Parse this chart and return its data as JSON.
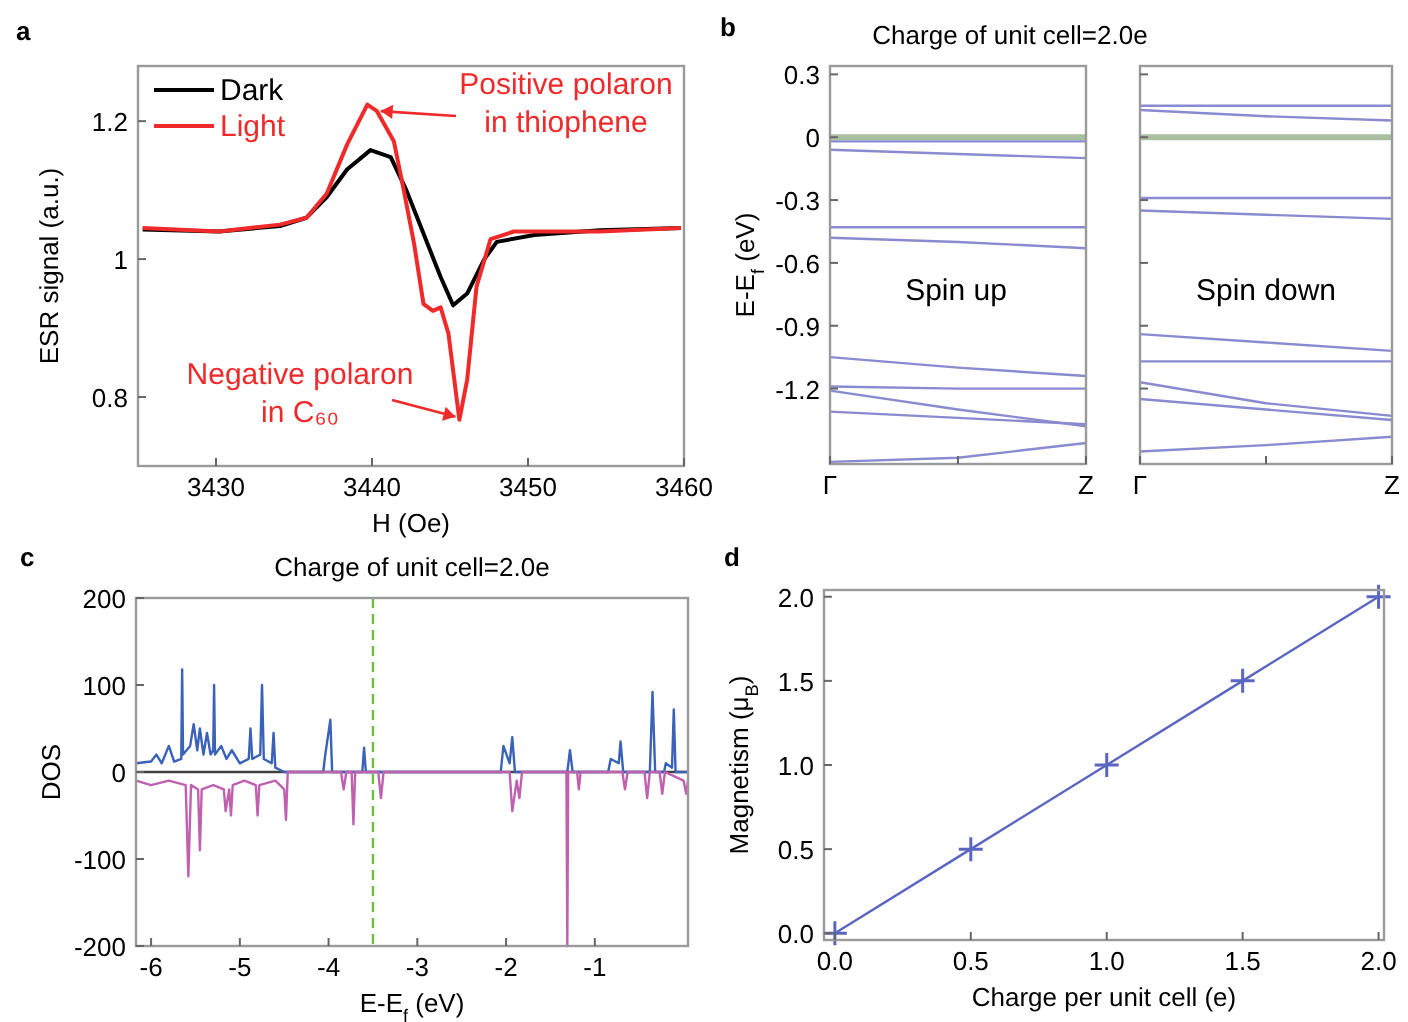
{
  "chart_data": [
    {
      "type": "line",
      "xlabel": "H (Oe)",
      "ylabel": "ESR signal (a.u.)",
      "xlim": [
        3425,
        3460
      ],
      "xticks": [
        3430,
        3440,
        3450,
        3460
      ],
      "ylim": [
        0.7,
        1.28
      ],
      "yticks": [
        0.8,
        1.0,
        1.2
      ],
      "legend": "top left",
      "grid": false,
      "annotations": [
        "a",
        {
          "text": "Positive polaron in thiophene",
          "x": 3440.3,
          "y": 1.215
        },
        {
          "text": "Negative polaron in C₆₀",
          "x": 3445.6,
          "y": 0.77
        }
      ],
      "series": [
        {
          "name": "Dark",
          "color": "#000000",
          "x": [
            3425.3,
            3430.2,
            3434.1,
            3435.8,
            3437.1,
            3438.4,
            3439.9,
            3441.2,
            3442.2,
            3443.3,
            3444.4,
            3445.2,
            3446.1,
            3447.2,
            3448.0,
            3450.4,
            3454.6,
            3459.8
          ],
          "values": [
            1.043,
            1.04,
            1.048,
            1.06,
            1.09,
            1.13,
            1.158,
            1.148,
            1.1,
            1.037,
            0.974,
            0.933,
            0.95,
            1.0,
            1.025,
            1.035,
            1.042,
            1.045
          ]
        },
        {
          "name": "Light",
          "color": "#f02a2a",
          "x": [
            3425.3,
            3430.2,
            3434.1,
            3435.8,
            3437.1,
            3438.4,
            3439.7,
            3440.3,
            3441.4,
            3442.0,
            3442.7,
            3443.3,
            3443.9,
            3444.4,
            3444.9,
            3445.6,
            3446.1,
            3446.7,
            3447.6,
            3449.1,
            3454.6,
            3459.8
          ],
          "values": [
            1.045,
            1.04,
            1.05,
            1.06,
            1.095,
            1.166,
            1.224,
            1.215,
            1.171,
            1.104,
            1.022,
            0.935,
            0.925,
            0.93,
            0.892,
            0.767,
            0.825,
            0.96,
            1.029,
            1.04,
            1.04,
            1.045
          ]
        }
      ]
    },
    {
      "type": "line",
      "title": "Charge of unit cell=2.0e",
      "ylabel": "E-E$_{f}$ (eV)",
      "categories": [
        "Γ",
        null,
        "Z"
      ],
      "ylim": [
        -1.56,
        0.34
      ],
      "yticks": [
        0.3,
        0,
        -0.3,
        -0.6,
        -0.9,
        -1.2
      ],
      "annotations": [
        "b",
        "Spin up"
      ],
      "ref_lines": [
        {
          "axis": "y",
          "value": 0,
          "color": "#a8c0a0"
        }
      ],
      "series": [
        {
          "color": "#8a8ad0",
          "values": [
            -0.02,
            -0.02,
            -0.02
          ]
        },
        {
          "color": "#8a8ad0",
          "values": [
            -0.06,
            -0.08,
            -0.1
          ]
        },
        {
          "color": "#8a8ad0",
          "values": [
            -0.43,
            -0.43,
            -0.43
          ]
        },
        {
          "color": "#8a8ad0",
          "values": [
            -0.48,
            -0.5,
            -0.53
          ]
        },
        {
          "color": "#8a8ad0",
          "values": [
            -1.05,
            -1.1,
            -1.14
          ]
        },
        {
          "color": "#8a8ad0",
          "values": [
            -1.19,
            -1.2,
            -1.2
          ]
        },
        {
          "color": "#8a8ad0",
          "values": [
            -1.21,
            -1.3,
            -1.38
          ]
        },
        {
          "color": "#8a8ad0",
          "values": [
            -1.31,
            -1.34,
            -1.37
          ]
        },
        {
          "color": "#8a8ad0",
          "values": [
            -1.55,
            -1.53,
            -1.46
          ]
        }
      ]
    },
    {
      "type": "line",
      "categories": [
        "Γ",
        null,
        "Z"
      ],
      "ylim": [
        -1.56,
        0.34
      ],
      "yticks": [
        0.3,
        0,
        -0.3,
        -0.6,
        -0.9,
        -1.2
      ],
      "tick_labels": "x",
      "annotations": [
        "Spin down"
      ],
      "ref_lines": [
        {
          "axis": "y",
          "value": 0,
          "color": "#a8c0a0"
        }
      ],
      "series": [
        {
          "color": "#8a8ad0",
          "values": [
            0.15,
            0.15,
            0.15
          ]
        },
        {
          "color": "#8a8ad0",
          "values": [
            0.13,
            0.1,
            0.08
          ]
        },
        {
          "color": "#8a8ad0",
          "values": [
            -0.29,
            -0.29,
            -0.29
          ]
        },
        {
          "color": "#8a8ad0",
          "values": [
            -0.35,
            -0.37,
            -0.39
          ]
        },
        {
          "color": "#8a8ad0",
          "values": [
            -0.94,
            -0.98,
            -1.02
          ]
        },
        {
          "color": "#8a8ad0",
          "values": [
            -1.07,
            -1.07,
            -1.07
          ]
        },
        {
          "color": "#8a8ad0",
          "values": [
            -1.17,
            -1.27,
            -1.33
          ]
        },
        {
          "color": "#8a8ad0",
          "values": [
            -1.25,
            -1.3,
            -1.35
          ]
        },
        {
          "color": "#8a8ad0",
          "values": [
            -1.5,
            -1.47,
            -1.43
          ]
        }
      ]
    },
    {
      "type": "line",
      "title": "Charge of unit cell=2.0e",
      "xlabel": "E-E$_{f}$ (eV)",
      "ylabel": "DOS",
      "xlim": [
        -6.17,
        0.05
      ],
      "xticks": [
        -6,
        -5,
        -4,
        -3,
        -2,
        -1
      ],
      "ylim": [
        -200,
        200
      ],
      "yticks": [
        -200,
        -100,
        0,
        100,
        200
      ],
      "annotations": [
        "c"
      ],
      "ref_lines": [
        {
          "axis": "x",
          "value": -3.5,
          "color": "#70c040",
          "line_style": "dashed"
        },
        {
          "axis": "y",
          "value": 0,
          "color": "#404040"
        }
      ],
      "series": [
        {
          "color": "#3a62b8",
          "x": [
            -6.17,
            -6.0,
            -5.94,
            -5.88,
            -5.8,
            -5.74,
            -5.66,
            -5.65,
            -5.64,
            -5.56,
            -5.52,
            -5.48,
            -5.45,
            -5.41,
            -5.37,
            -5.33,
            -5.3,
            -5.29,
            -5.28,
            -5.21,
            -5.15,
            -5.09,
            -5.0,
            -4.9,
            -4.88,
            -4.86,
            -4.77,
            -4.75,
            -4.73,
            -4.64,
            -4.62,
            -4.6,
            -4.5,
            -4.06,
            -4.04,
            -3.98,
            -3.96,
            -3.62,
            -3.6,
            -3.58,
            -2.06,
            -2.03,
            -1.96,
            -1.93,
            -1.9,
            -1.31,
            -1.28,
            -1.25,
            -0.85,
            -0.82,
            -0.73,
            -0.71,
            -0.68,
            -0.38,
            -0.35,
            -0.32,
            -0.22,
            -0.2,
            -0.13,
            -0.11,
            -0.09,
            0.05
          ],
          "values": [
            10,
            12,
            20,
            10,
            30,
            12,
            15,
            118,
            20,
            30,
            55,
            25,
            50,
            20,
            45,
            20,
            25,
            100,
            20,
            30,
            15,
            25,
            10,
            15,
            50,
            15,
            20,
            100,
            15,
            10,
            45,
            5,
            0,
            0,
            18,
            60,
            0,
            0,
            28,
            0,
            0,
            30,
            10,
            40,
            0,
            0,
            25,
            0,
            0,
            15,
            10,
            35,
            0,
            0,
            92,
            0,
            0,
            10,
            5,
            72,
            0,
            0
          ]
        },
        {
          "color": "#c060b0",
          "x": [
            -6.17,
            -6.0,
            -5.8,
            -5.61,
            -5.58,
            -5.55,
            -5.47,
            -5.45,
            -5.43,
            -5.3,
            -5.18,
            -5.16,
            -5.12,
            -5.1,
            -5.08,
            -4.95,
            -4.82,
            -4.8,
            -4.78,
            -4.6,
            -4.5,
            -4.48,
            -4.46,
            -3.86,
            -3.83,
            -3.8,
            -3.74,
            -3.72,
            -3.7,
            -3.44,
            -3.41,
            -3.38,
            -1.96,
            -1.93,
            -1.88,
            -1.85,
            -1.82,
            -1.32,
            -1.31,
            -1.3,
            -1.2,
            -1.18,
            -1.16,
            -0.69,
            -0.66,
            -0.63,
            -0.44,
            -0.41,
            -0.38,
            -0.27,
            -0.24,
            -0.21,
            0.0,
            0.03,
            0.05
          ],
          "values": [
            -10,
            -15,
            -10,
            -15,
            -120,
            -15,
            -20,
            -90,
            -20,
            -15,
            -20,
            -45,
            -20,
            -50,
            -15,
            -10,
            -15,
            -50,
            -15,
            -10,
            -20,
            -55,
            0,
            0,
            -20,
            0,
            0,
            -60,
            0,
            0,
            -30,
            0,
            0,
            -45,
            -10,
            -30,
            0,
            0,
            -200,
            0,
            0,
            -20,
            0,
            0,
            -20,
            0,
            0,
            -30,
            0,
            0,
            -25,
            0,
            -10,
            -25,
            -10
          ]
        }
      ]
    },
    {
      "type": "line",
      "xlabel": "Charge per unit cell (e)",
      "ylabel": "Magnetism (μ$_{B}$)",
      "xlim": [
        -0.04,
        2.02
      ],
      "xticks": [
        {
          "value": 0,
          "label": "0.0"
        },
        0.5,
        {
          "value": 1,
          "label": "1.0"
        },
        1.5,
        {
          "value": 2,
          "label": "2.0"
        }
      ],
      "ylim": [
        -0.04,
        2.04
      ],
      "yticks": [
        {
          "value": 0,
          "label": "0.0"
        },
        0.5,
        {
          "value": 1,
          "label": "1.0"
        },
        1.5,
        {
          "value": 2,
          "label": "2.0"
        }
      ],
      "marker": "cross",
      "annotations": [
        "d"
      ],
      "series": [
        {
          "color": "#5a66c0",
          "x": [
            0,
            0.5,
            1,
            1.5,
            2
          ],
          "values": [
            0,
            0.5,
            1,
            1.5,
            2
          ]
        }
      ]
    }
  ]
}
